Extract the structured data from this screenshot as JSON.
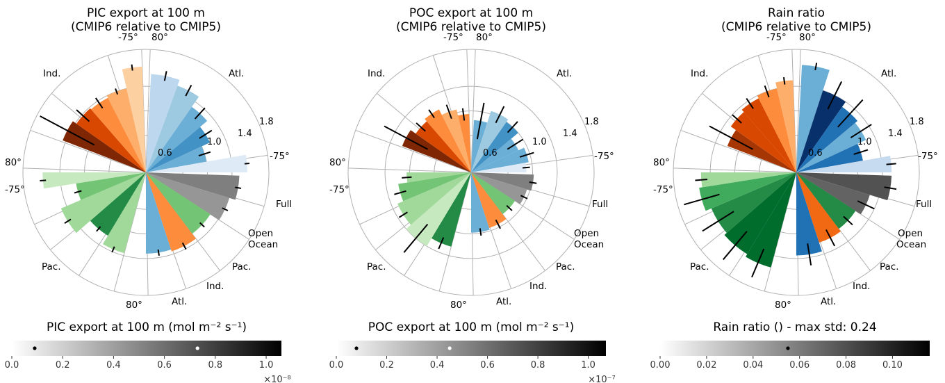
{
  "charts": [
    {
      "title": [
        "PIC export at 100 m",
        "(CMIP6 relative to CMIP5)"
      ],
      "colorbar": {
        "label": "PIC export at 100 m (mol m⁻² s⁻¹)",
        "ticks": [
          "0.0",
          "0.2",
          "0.4",
          "0.6",
          "0.8",
          "1.0"
        ],
        "multiplier": "×10⁻⁸",
        "dots": [
          {
            "value": 0.09,
            "color": "#000000"
          },
          {
            "value": 0.73,
            "color": "#ffffff"
          }
        ]
      }
    },
    {
      "title": [
        "POC export at 100 m",
        "(CMIP6 relative to CMIP5)"
      ],
      "colorbar": {
        "label": "POC export at 100 m (mol m⁻² s⁻¹)",
        "ticks": [
          "0.0",
          "0.2",
          "0.4",
          "0.6",
          "0.8",
          "1.0"
        ],
        "multiplier": "×10⁻⁷",
        "dots": [
          {
            "value": 0.08,
            "color": "#000000"
          },
          {
            "value": 0.45,
            "color": "#ffffff"
          }
        ]
      }
    },
    {
      "title": [
        "Rain ratio",
        "(CMIP6 relative to CMIP5)"
      ],
      "colorbar": {
        "label": "Rain ratio () - max std: 0.24",
        "ticks": [
          "0.00",
          "0.02",
          "0.04",
          "0.06",
          "0.08",
          "0.10"
        ],
        "multiplier": "",
        "dots": [
          {
            "value": 0.055,
            "color": "#000000"
          }
        ]
      }
    }
  ],
  "chart_data": [
    {
      "type": "bar",
      "polar": true,
      "title": "PIC export at 100 m (CMIP6 relative to CMIP5)",
      "radial_ticks": [
        "0.6",
        "1.0",
        "1.4",
        "1.8"
      ],
      "labels": [
        "Full",
        "Open Ocean",
        "Pac.",
        "Ind.",
        "Atl.",
        "80°",
        "-75°",
        "80°",
        "Pac.",
        "Ind.",
        "-75°",
        "80°",
        "Atl.",
        "-75°"
      ],
      "bars": [
        {
          "group": "Full",
          "color": "#7f7f7f",
          "values": [
            1.5
          ]
        },
        {
          "group": "Full",
          "color": "#969696",
          "values": [
            1.4
          ]
        },
        {
          "group": "Open Ocean",
          "color": "#4d4d4d",
          "values": [
            0
          ]
        },
        {
          "group": "Atl.",
          "color": "#6baed6",
          "values": [
            1.3
          ]
        },
        {
          "group": "Ind.",
          "color": "#fd8d3c",
          "values": [
            1.32
          ]
        },
        {
          "group": "Pac.",
          "color": "#74c476",
          "values": [
            1.25
          ]
        },
        {
          "group": "Pac.",
          "color": "#a1d99b",
          "values": [
            1.45
          ]
        },
        {
          "group": "Pac.",
          "color": "#238b45",
          "values": [
            1.15
          ]
        },
        {
          "group": "-75°",
          "color": "#c7e9c0",
          "values": [
            1.65
          ]
        },
        {
          "group": "Ind.",
          "color": "#7f2704",
          "values": [
            1.45
          ]
        },
        {
          "group": "Ind.",
          "color": "#d94801",
          "values": [
            1.4
          ]
        },
        {
          "group": "Ind.",
          "color": "#fdd0a2",
          "values": [
            1.7
          ]
        },
        {
          "group": "Atl.",
          "color": "#bdd7ee",
          "values": [
            1.75
          ]
        }
      ]
    },
    {
      "type": "bar",
      "polar": true,
      "title": "POC export at 100 m (CMIP6 relative to CMIP5)",
      "radial_ticks": [
        "0.6",
        "1.0",
        "1.4",
        "1.8"
      ],
      "labels": [
        "Full",
        "Open Ocean",
        "Pac.",
        "Ind.",
        "Atl.",
        "80°",
        "-75°",
        "80°",
        "Pac.",
        "Ind.",
        "-75°",
        "80°",
        "Atl.",
        "-75°"
      ]
    },
    {
      "type": "bar",
      "polar": true,
      "title": "Rain ratio (CMIP6 relative to CMIP5)",
      "radial_ticks": [
        "0.6",
        "1.0",
        "1.4",
        "1.8"
      ],
      "labels": [
        "Full",
        "Open Ocean",
        "Pac.",
        "Ind.",
        "Atl.",
        "80°",
        "-75°",
        "80°",
        "Pac.",
        "Ind.",
        "-75°",
        "80°",
        "Atl.",
        "-75°"
      ]
    }
  ]
}
